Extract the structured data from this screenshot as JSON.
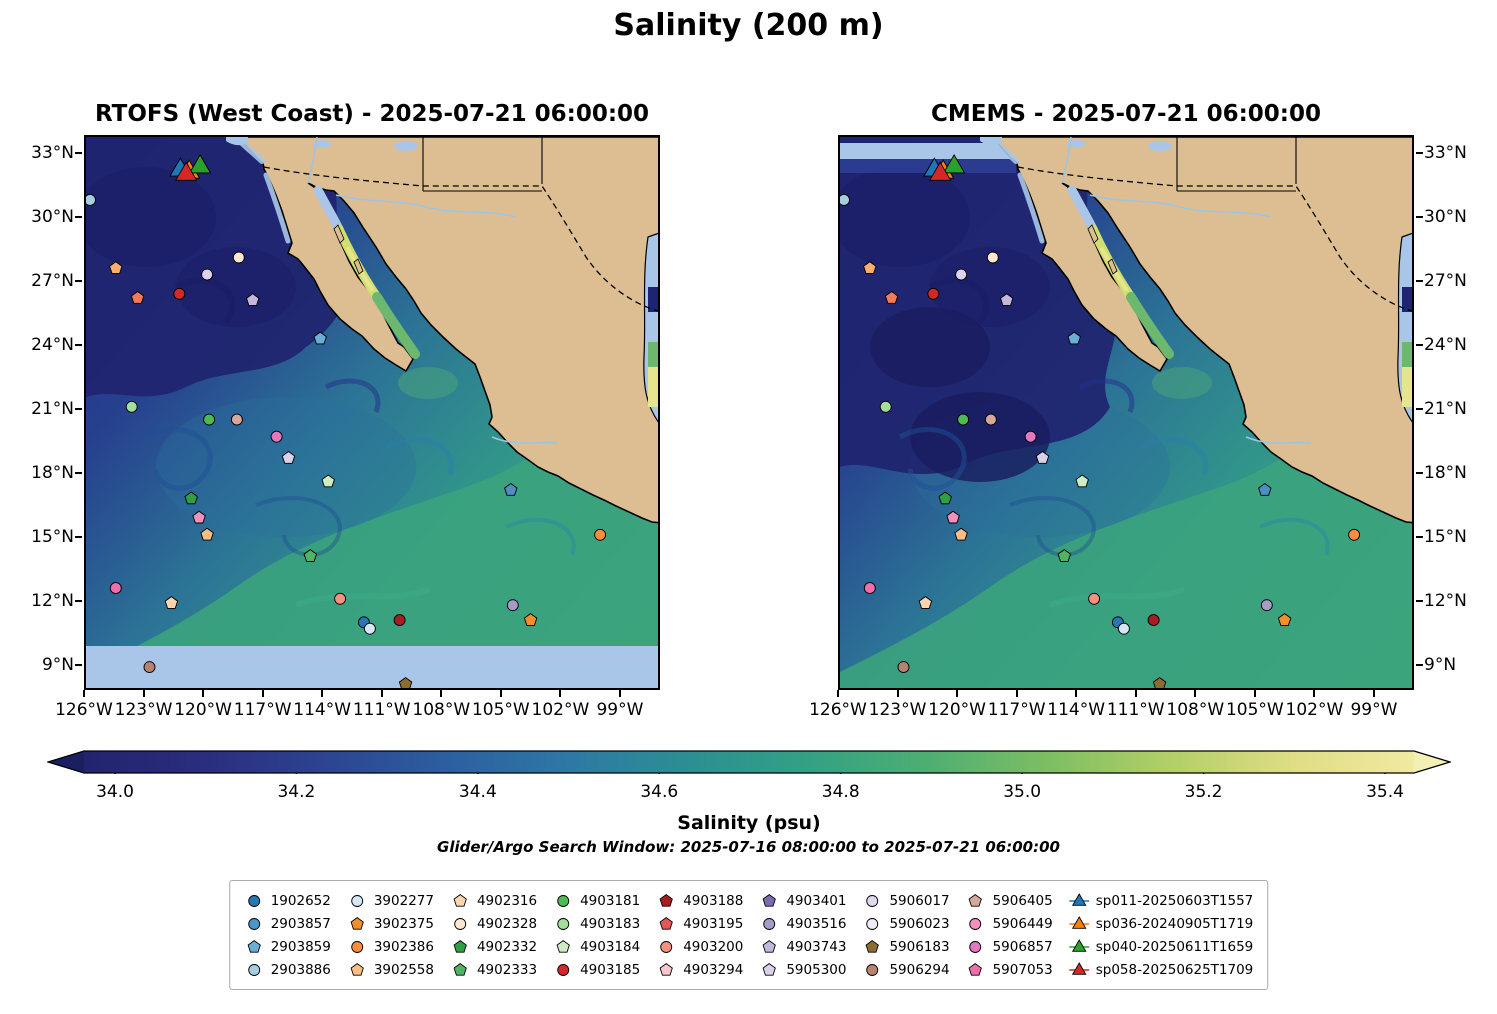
{
  "figure": {
    "title": "Salinity (200 m)",
    "search_window": "Glider/Argo Search Window: 2025-07-16 08:00:00 to 2025-07-21 06:00:00"
  },
  "panels": [
    {
      "title": "RTOFS (West Coast) - 2025-07-21 06:00:00",
      "lat_label_side": "left",
      "variant": "rtofs"
    },
    {
      "title": "CMEMS - 2025-07-21 06:00:00",
      "lat_label_side": "right",
      "variant": "cmems"
    }
  ],
  "axes": {
    "lat_ticks": [
      "33°N",
      "30°N",
      "27°N",
      "24°N",
      "21°N",
      "18°N",
      "15°N",
      "12°N",
      "9°N"
    ],
    "lon_ticks": [
      "126°W",
      "123°W",
      "120°W",
      "117°W",
      "114°W",
      "111°W",
      "108°W",
      "105°W",
      "102°W",
      "99°W"
    ]
  },
  "colorbar": {
    "label": "Salinity (psu)",
    "ticks": [
      "34.0",
      "34.2",
      "34.4",
      "34.6",
      "34.8",
      "35.0",
      "35.2",
      "35.4"
    ],
    "stops": [
      "#22246e",
      "#2b2d7e",
      "#2d4491",
      "#2d5fa0",
      "#2e78a5",
      "#2c8f93",
      "#33a184",
      "#4fae72",
      "#7fbe63",
      "#b3cf67",
      "#dfdd85",
      "#f0eaa2"
    ],
    "under_color": "#1c1e62",
    "over_color": "#f4f0b5"
  },
  "map_colors": {
    "land": "#ddbe92",
    "coastline": "#000000",
    "shallow_missing": "#a9c6e8",
    "ocean_dark": "#232a7e",
    "ocean_green": "#3ba37d"
  },
  "legend": {
    "items": [
      {
        "label": "1902652",
        "shape": "circle",
        "color": "#2777b4"
      },
      {
        "label": "2903857",
        "shape": "circle",
        "color": "#4a98c9"
      },
      {
        "label": "2903859",
        "shape": "pentagon",
        "color": "#6aaed6"
      },
      {
        "label": "2903886",
        "shape": "circle",
        "color": "#a6cee3"
      },
      {
        "label": "3902277",
        "shape": "circle",
        "color": "#d6e6f4"
      },
      {
        "label": "3902375",
        "shape": "pentagon",
        "color": "#f28e2b"
      },
      {
        "label": "3902386",
        "shape": "circle",
        "color": "#fd8d3c"
      },
      {
        "label": "3902558",
        "shape": "pentagon",
        "color": "#fdbe85"
      },
      {
        "label": "4902316",
        "shape": "pentagon",
        "color": "#fdd5b0"
      },
      {
        "label": "4902328",
        "shape": "circle",
        "color": "#fee8d4"
      },
      {
        "label": "4902332",
        "shape": "pentagon",
        "color": "#2f9e44"
      },
      {
        "label": "4902333",
        "shape": "pentagon",
        "color": "#51b364"
      },
      {
        "label": "4903181",
        "shape": "circle",
        "color": "#4cbb51"
      },
      {
        "label": "4903183",
        "shape": "circle",
        "color": "#a4de9c"
      },
      {
        "label": "4903184",
        "shape": "pentagon",
        "color": "#cdeec5"
      },
      {
        "label": "4903185",
        "shape": "circle",
        "color": "#d62728"
      },
      {
        "label": "4903188",
        "shape": "pentagon",
        "color": "#a61e22"
      },
      {
        "label": "4903195",
        "shape": "pentagon",
        "color": "#e45756"
      },
      {
        "label": "4903200",
        "shape": "circle",
        "color": "#f4917f"
      },
      {
        "label": "4903294",
        "shape": "pentagon",
        "color": "#f9c6cf"
      },
      {
        "label": "4903401",
        "shape": "pentagon",
        "color": "#7c6bb0"
      },
      {
        "label": "4903516",
        "shape": "circle",
        "color": "#a79cc8"
      },
      {
        "label": "4903743",
        "shape": "pentagon",
        "color": "#c3b8dc"
      },
      {
        "label": "5905300",
        "shape": "pentagon",
        "color": "#d9d2ea"
      },
      {
        "label": "5906017",
        "shape": "circle",
        "color": "#e0d9ee"
      },
      {
        "label": "5906023",
        "shape": "circle",
        "color": "#efeaf6"
      },
      {
        "label": "5906183",
        "shape": "pentagon",
        "color": "#8c6d31"
      },
      {
        "label": "5906294",
        "shape": "circle",
        "color": "#b5836f"
      },
      {
        "label": "5906405",
        "shape": "pentagon",
        "color": "#d8a79b"
      },
      {
        "label": "5906449",
        "shape": "circle",
        "color": "#f291bb"
      },
      {
        "label": "5906857",
        "shape": "circle",
        "color": "#e377c2"
      },
      {
        "label": "5907053",
        "shape": "pentagon",
        "color": "#f06eaa"
      },
      {
        "label": "sp011-20250603T1557",
        "shape": "triangle",
        "color": "#1f77b4"
      },
      {
        "label": "sp036-20240905T1719",
        "shape": "triangle",
        "color": "#ff7f0e"
      },
      {
        "label": "sp040-20250611T1659",
        "shape": "triangle",
        "color": "#2ca02c"
      },
      {
        "label": "sp058-20250625T1709",
        "shape": "triangle",
        "color": "#d62728"
      }
    ]
  },
  "chart_data": {
    "type": "heatmap",
    "title": "Salinity (200 m)",
    "panels": [
      {
        "model": "RTOFS (West Coast)",
        "time": "2025-07-21 06:00:00"
      },
      {
        "model": "CMEMS",
        "time": "2025-07-21 06:00:00"
      }
    ],
    "lon_range_deg_w": [
      126,
      97
    ],
    "lat_range_deg_n": [
      8,
      34
    ],
    "colorbar": {
      "label": "Salinity (psu)",
      "min": 34.0,
      "max": 35.4,
      "tick_step": 0.2,
      "extend": "both"
    },
    "field_summary": "Low salinity (~34.0-34.2, dark blue/purple) in the northwest open Pacific; increasing southeastward to ~34.8-35.0 (green) off southern Mexico; highest values (~35.2-35.4, yellow-green) inside the Gulf of California; land masked tan; shallow/missing data light blue.",
    "markers": [
      {
        "lon": 125.8,
        "lat": 30.9,
        "shape": "circle",
        "color": "#a6cee3"
      },
      {
        "lon": 124.5,
        "lat": 27.7,
        "shape": "pentagon",
        "color": "#fdae6b"
      },
      {
        "lon": 123.4,
        "lat": 26.3,
        "shape": "pentagon",
        "color": "#f4795b"
      },
      {
        "lon": 121.3,
        "lat": 26.5,
        "shape": "circle",
        "color": "#d62728"
      },
      {
        "lon": 119.9,
        "lat": 27.4,
        "shape": "circle",
        "color": "#ddd3ec"
      },
      {
        "lon": 118.3,
        "lat": 28.2,
        "shape": "circle",
        "color": "#fee8d4"
      },
      {
        "lon": 117.6,
        "lat": 26.2,
        "shape": "pentagon",
        "color": "#c3b8dc"
      },
      {
        "lon": 114.2,
        "lat": 24.4,
        "shape": "pentagon",
        "color": "#6aaed6"
      },
      {
        "lon": 123.7,
        "lat": 21.2,
        "shape": "circle",
        "color": "#a4de9c"
      },
      {
        "lon": 119.8,
        "lat": 20.6,
        "shape": "circle",
        "color": "#4cbb51"
      },
      {
        "lon": 118.4,
        "lat": 20.6,
        "shape": "circle",
        "color": "#d8a79b"
      },
      {
        "lon": 116.4,
        "lat": 19.8,
        "shape": "circle",
        "color": "#e377c2"
      },
      {
        "lon": 115.8,
        "lat": 18.8,
        "shape": "pentagon",
        "color": "#d9d2ea"
      },
      {
        "lon": 113.8,
        "lat": 17.7,
        "shape": "pentagon",
        "color": "#cdeec5"
      },
      {
        "lon": 120.7,
        "lat": 16.9,
        "shape": "pentagon",
        "color": "#2f9e44"
      },
      {
        "lon": 120.3,
        "lat": 16.0,
        "shape": "pentagon",
        "color": "#f291bb"
      },
      {
        "lon": 119.9,
        "lat": 15.2,
        "shape": "pentagon",
        "color": "#fdbe85"
      },
      {
        "lon": 104.6,
        "lat": 17.3,
        "shape": "pentagon",
        "color": "#4a90c4"
      },
      {
        "lon": 100.1,
        "lat": 15.2,
        "shape": "circle",
        "color": "#fd8d3c"
      },
      {
        "lon": 114.7,
        "lat": 14.2,
        "shape": "pentagon",
        "color": "#51b364"
      },
      {
        "lon": 124.5,
        "lat": 12.7,
        "shape": "circle",
        "color": "#f06eaa"
      },
      {
        "lon": 121.7,
        "lat": 12.0,
        "shape": "pentagon",
        "color": "#fdd5b0"
      },
      {
        "lon": 113.2,
        "lat": 12.2,
        "shape": "circle",
        "color": "#f4917f"
      },
      {
        "lon": 112.0,
        "lat": 11.1,
        "shape": "circle",
        "color": "#2777b4"
      },
      {
        "lon": 111.7,
        "lat": 10.8,
        "shape": "circle",
        "color": "#d6e6f4"
      },
      {
        "lon": 110.2,
        "lat": 11.2,
        "shape": "circle",
        "color": "#a61e22"
      },
      {
        "lon": 104.5,
        "lat": 11.9,
        "shape": "circle",
        "color": "#a79cc8"
      },
      {
        "lon": 103.6,
        "lat": 11.2,
        "shape": "pentagon",
        "color": "#f28e2b"
      },
      {
        "lon": 122.8,
        "lat": 9.0,
        "shape": "circle",
        "color": "#b5836f"
      },
      {
        "lon": 109.9,
        "lat": 8.2,
        "shape": "pentagon",
        "color": "#8c6d31"
      }
    ],
    "gliders": [
      {
        "id": "sp011-20250603T1557",
        "lon": 121.25,
        "lat": 32.3,
        "shape": "triangle",
        "color": "#1f77b4"
      },
      {
        "id": "sp036-20240905T1719",
        "lon": 120.8,
        "lat": 32.2,
        "shape": "triangle",
        "color": "#ff7f0e"
      },
      {
        "id": "sp040-20250611T1659",
        "lon": 120.25,
        "lat": 32.45,
        "shape": "triangle",
        "color": "#2ca02c"
      },
      {
        "id": "sp058-20250625T1709",
        "lon": 120.95,
        "lat": 32.1,
        "shape": "triangle",
        "color": "#d62728"
      }
    ]
  }
}
